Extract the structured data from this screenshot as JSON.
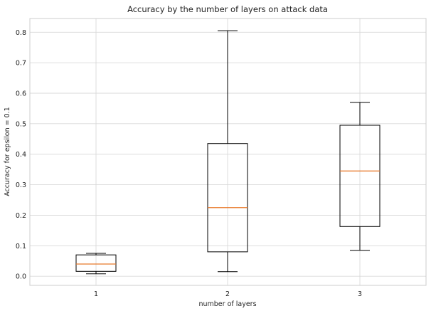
{
  "chart_data": {
    "type": "box",
    "title": "Accuracy by the number of layers on attack data",
    "xlabel": "number of layers",
    "ylabel": "Accuracy for epsilon = 0.1",
    "categories": [
      "1",
      "2",
      "3"
    ],
    "ylim": [
      -0.03,
      0.845
    ],
    "yticks": [
      "0.0",
      "0.1",
      "0.2",
      "0.3",
      "0.4",
      "0.5",
      "0.6",
      "0.7",
      "0.8"
    ],
    "grid": true,
    "boxes": [
      {
        "category": "1",
        "min": 0.008,
        "q1": 0.016,
        "median": 0.04,
        "q3": 0.07,
        "max": 0.075
      },
      {
        "category": "2",
        "min": 0.015,
        "q1": 0.08,
        "median": 0.225,
        "q3": 0.435,
        "max": 0.805
      },
      {
        "category": "3",
        "min": 0.085,
        "q1": 0.163,
        "median": 0.345,
        "q3": 0.495,
        "max": 0.57
      }
    ],
    "colors": {
      "box": "#000000",
      "median": "#e8792a",
      "grid": "#d9d9d9"
    }
  }
}
